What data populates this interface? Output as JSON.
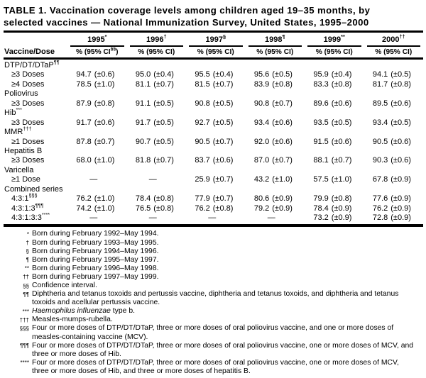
{
  "title": {
    "line1": "TABLE 1. Vaccination coverage levels among children aged 19–35 months, by",
    "line2": "selected vaccines — National Immunization Survey, United States, 1995–2000"
  },
  "table": {
    "row_header": "Vaccine/Dose",
    "columns": [
      {
        "year": "1995",
        "marker": "*",
        "sub_pre": "% (95% CI",
        "sub_sup": "§§",
        "sub_post": ")"
      },
      {
        "year": "1996",
        "marker": "†",
        "sub_pre": "% (95% CI",
        "sub_sup": "",
        "sub_post": ")"
      },
      {
        "year": "1997",
        "marker": "§",
        "sub_pre": "% (95% CI",
        "sub_sup": "",
        "sub_post": ")"
      },
      {
        "year": "1998",
        "marker": "¶",
        "sub_pre": "% (95% CI",
        "sub_sup": "",
        "sub_post": ")"
      },
      {
        "year": "1999",
        "marker": "**",
        "sub_pre": "% (95% CI",
        "sub_sup": "",
        "sub_post": ")"
      },
      {
        "year": "2000",
        "marker": "††",
        "sub_pre": "% (95% CI",
        "sub_sup": "",
        "sub_post": ")"
      }
    ],
    "rows": [
      {
        "type": "group",
        "label": "DTP/DT/DTaP",
        "marker": "¶¶"
      },
      {
        "type": "data",
        "label": "≥3 Doses",
        "marker": "",
        "cells": [
          {
            "pct": "94.7",
            "ci": "(±0.6)"
          },
          {
            "pct": "95.0",
            "ci": "(±0.4)"
          },
          {
            "pct": "95.5",
            "ci": "(±0.4)"
          },
          {
            "pct": "95.6",
            "ci": "(±0.5)"
          },
          {
            "pct": "95.9",
            "ci": "(±0.4)"
          },
          {
            "pct": "94.1",
            "ci": "(±0.5)"
          }
        ]
      },
      {
        "type": "data",
        "label": "≥4 Doses",
        "marker": "",
        "cells": [
          {
            "pct": "78.5",
            "ci": "(±1.0)"
          },
          {
            "pct": "81.1",
            "ci": "(±0.7)"
          },
          {
            "pct": "81.5",
            "ci": "(±0.7)"
          },
          {
            "pct": "83.9",
            "ci": "(±0.8)"
          },
          {
            "pct": "83.3",
            "ci": "(±0.8)"
          },
          {
            "pct": "81.7",
            "ci": "(±0.8)"
          }
        ]
      },
      {
        "type": "group",
        "label": "Poliovirus",
        "marker": ""
      },
      {
        "type": "data",
        "label": "≥3 Doses",
        "marker": "",
        "cells": [
          {
            "pct": "87.9",
            "ci": "(±0.8)"
          },
          {
            "pct": "91.1",
            "ci": "(±0.5)"
          },
          {
            "pct": "90.8",
            "ci": "(±0.5)"
          },
          {
            "pct": "90.8",
            "ci": "(±0.7)"
          },
          {
            "pct": "89.6",
            "ci": "(±0.6)"
          },
          {
            "pct": "89.5",
            "ci": "(±0.6)"
          }
        ]
      },
      {
        "type": "group",
        "label": "Hib",
        "marker": "***"
      },
      {
        "type": "data",
        "label": "≥3 Doses",
        "marker": "",
        "cells": [
          {
            "pct": "91.7",
            "ci": "(±0.6)"
          },
          {
            "pct": "91.7",
            "ci": "(±0.5)"
          },
          {
            "pct": "92.7",
            "ci": "(±0.5)"
          },
          {
            "pct": "93.4",
            "ci": "(±0.6)"
          },
          {
            "pct": "93.5",
            "ci": "(±0.5)"
          },
          {
            "pct": "93.4",
            "ci": "(±0.5)"
          }
        ]
      },
      {
        "type": "group",
        "label": "MMR",
        "marker": "†††"
      },
      {
        "type": "data",
        "label": "≥1 Doses",
        "marker": "",
        "cells": [
          {
            "pct": "87.8",
            "ci": "(±0.7)"
          },
          {
            "pct": "90.7",
            "ci": "(±0.5)"
          },
          {
            "pct": "90.5",
            "ci": "(±0.7)"
          },
          {
            "pct": "92.0",
            "ci": "(±0.6)"
          },
          {
            "pct": "91.5",
            "ci": "(±0.6)"
          },
          {
            "pct": "90.5",
            "ci": "(±0.6)"
          }
        ]
      },
      {
        "type": "group",
        "label": "Hepatitis B",
        "marker": ""
      },
      {
        "type": "data",
        "label": "≥3 Doses",
        "marker": "",
        "cells": [
          {
            "pct": "68.0",
            "ci": "(±1.0)"
          },
          {
            "pct": "81.8",
            "ci": "(±0.7)"
          },
          {
            "pct": "83.7",
            "ci": "(±0.6)"
          },
          {
            "pct": "87.0",
            "ci": "(±0.7)"
          },
          {
            "pct": "88.1",
            "ci": "(±0.7)"
          },
          {
            "pct": "90.3",
            "ci": "(±0.6)"
          }
        ]
      },
      {
        "type": "group",
        "label": "Varicella",
        "marker": ""
      },
      {
        "type": "data",
        "label": "≥1 Dose",
        "marker": "",
        "cells": [
          {
            "pct": "—",
            "ci": ""
          },
          {
            "pct": "—",
            "ci": ""
          },
          {
            "pct": "25.9",
            "ci": "(±0.7)"
          },
          {
            "pct": "43.2",
            "ci": "(±1.0)"
          },
          {
            "pct": "57.5",
            "ci": "(±1.0)"
          },
          {
            "pct": "67.8",
            "ci": "(±0.9)"
          }
        ]
      },
      {
        "type": "group",
        "label": "Combined series",
        "marker": ""
      },
      {
        "type": "data",
        "label": "4:3:1",
        "marker": "§§§",
        "cells": [
          {
            "pct": "76.2",
            "ci": "(±1.0)"
          },
          {
            "pct": "78.4",
            "ci": "(±0.8)"
          },
          {
            "pct": "77.9",
            "ci": "(±0.7)"
          },
          {
            "pct": "80.6",
            "ci": "(±0.9)"
          },
          {
            "pct": "79.9",
            "ci": "(±0.8)"
          },
          {
            "pct": "77.6",
            "ci": "(±0.9)"
          }
        ]
      },
      {
        "type": "data",
        "label": "4:3:1:3",
        "marker": "¶¶¶",
        "cells": [
          {
            "pct": "74.2",
            "ci": "(±1.0)"
          },
          {
            "pct": "76.5",
            "ci": "(±0.8)"
          },
          {
            "pct": "76.2",
            "ci": "(±0.8)"
          },
          {
            "pct": "79.2",
            "ci": "(±0.9)"
          },
          {
            "pct": "78.4",
            "ci": "(±0.9)"
          },
          {
            "pct": "76.2",
            "ci": "(±0.9)"
          }
        ]
      },
      {
        "type": "data",
        "label": "4:3:1:3:3",
        "marker": "****",
        "cells": [
          {
            "pct": "—",
            "ci": ""
          },
          {
            "pct": "—",
            "ci": ""
          },
          {
            "pct": "—",
            "ci": ""
          },
          {
            "pct": "—",
            "ci": ""
          },
          {
            "pct": "73.2",
            "ci": "(±0.9)"
          },
          {
            "pct": "72.8",
            "ci": "(±0.9)"
          }
        ]
      }
    ]
  },
  "footnotes": [
    {
      "marker": "*",
      "text": "Born during February 1992–May 1994."
    },
    {
      "marker": "†",
      "text": "Born during February 1993–May 1995."
    },
    {
      "marker": "§",
      "text": "Born during February 1994–May 1996."
    },
    {
      "marker": "¶",
      "text": "Born during February 1995–May 1997."
    },
    {
      "marker": "**",
      "text": "Born during February 1996–May 1998."
    },
    {
      "marker": "††",
      "text": "Born during February 1997–May 1999."
    },
    {
      "marker": "§§",
      "text": "Confidence interval."
    },
    {
      "marker": "¶¶",
      "text": "Diphtheria and tetanus toxoids and pertussis vaccine, diphtheria and tetanus toxoids, and diphtheria and tetanus toxoids and acellular pertussis vaccine."
    },
    {
      "marker": "***",
      "italic": "Haemophilus influenzae",
      "text": " type b."
    },
    {
      "marker": "†††",
      "text": "Measles-mumps-rubella."
    },
    {
      "marker": "§§§",
      "text": "Four or more doses of DTP/DT/DTaP, three or more doses of oral poliovirus vaccine, and one or more doses of measles-containing vaccine (MCV)."
    },
    {
      "marker": "¶¶¶",
      "text": "Four or more doses of DTP/DT/DTaP, three or more doses of oral poliovirus vaccine, one or more doses of MCV, and three or more doses of Hib."
    },
    {
      "marker": "****",
      "text": "Four or more doses of DTP/DT/DTaP, three or more doses of oral poliovirus vaccine, one or more doses of MCV, three or more doses of Hib, and three or more doses of hepatitis B."
    }
  ],
  "colors": {
    "text": "#000000",
    "background": "#ffffff",
    "rule": "#000000"
  }
}
